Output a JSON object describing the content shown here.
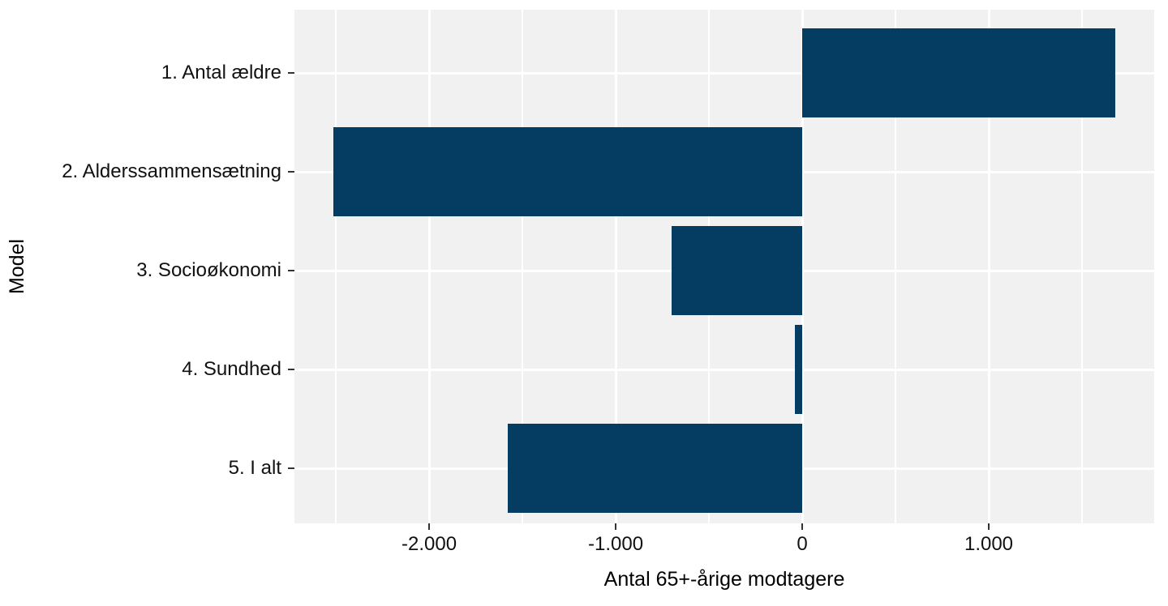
{
  "chart_data": {
    "type": "bar",
    "orientation": "horizontal",
    "title": "",
    "xlabel": "Antal 65+-årige modtagere",
    "ylabel": "Model",
    "categories": [
      "1. Antal ældre",
      "2. Alderssammensætning",
      "3. Socioøkonomi",
      "4. Sundhed",
      "5. I alt"
    ],
    "values": [
      1680,
      -2515,
      -700,
      -40,
      -1580
    ],
    "xlim": [
      -2722,
      1887
    ],
    "x_major_ticks": [
      -2000,
      -1000,
      0,
      1000
    ],
    "x_tick_labels": [
      "-2.000",
      "-1.000",
      "0",
      "1.000"
    ],
    "x_minor_ticks": [
      -2500,
      -1500,
      -500,
      500,
      1500
    ],
    "legend": "none",
    "grid": "major-and-minor-vertical-white, major-horizontal-white",
    "colors": {
      "bar_fill": "#053C61",
      "panel_background": "#F1F1F1",
      "gridline": "#FFFFFF",
      "tick_mark": "#333333",
      "text": "#111111",
      "figure_background": "#FFFFFF"
    }
  }
}
